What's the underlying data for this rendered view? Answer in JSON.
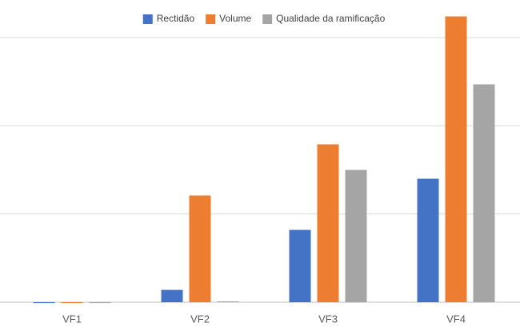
{
  "chart_data": {
    "type": "bar",
    "categories": [
      "VF1",
      "VF2",
      "VF3",
      "VF4"
    ],
    "series": [
      {
        "name": "Rectidão",
        "color": "#4472c4",
        "values": [
          -0.01,
          0.14,
          0.82,
          1.4
        ]
      },
      {
        "name": "Volume",
        "color": "#ed7d31",
        "values": [
          -0.01,
          1.21,
          1.79,
          3.24
        ]
      },
      {
        "name": "Qualidade da ramificação",
        "color": "#a5a5a5",
        "values": [
          -0.01,
          0.01,
          1.5,
          2.47
        ]
      }
    ],
    "ylim": [
      0,
      3.3
    ],
    "yticks": [
      0,
      1,
      2,
      3
    ],
    "grid": true,
    "legend": "top"
  }
}
